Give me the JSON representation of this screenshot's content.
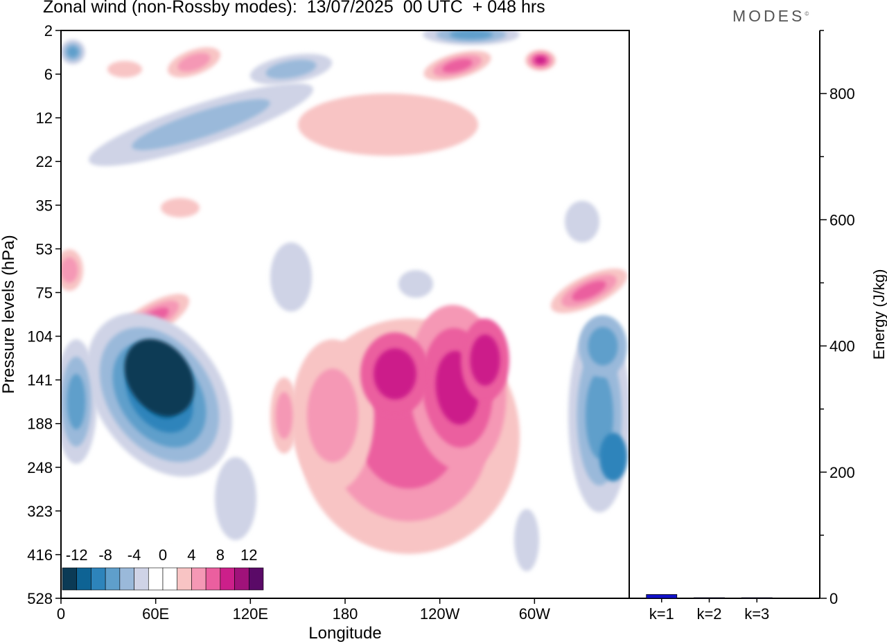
{
  "title": "Zonal wind (non-Rossby modes):  13/07/2025  00 UTC  + 048 hrs",
  "logo": "MODES",
  "logo_mark": "©",
  "chart_data": [
    {
      "type": "heatmap",
      "xlabel": "Longitude",
      "ylabel": "Pressure levels (hPa)",
      "x_ticks": [
        "0",
        "60E",
        "120E",
        "180",
        "120W",
        "60W"
      ],
      "x_tick_degrees": [
        0,
        60,
        120,
        180,
        240,
        300
      ],
      "xlim": [
        0,
        360
      ],
      "y_ticks": [
        "2",
        "6",
        "12",
        "22",
        "35",
        "53",
        "75",
        "104",
        "141",
        "188",
        "248",
        "323",
        "416",
        "528"
      ],
      "colorbar": {
        "labels": [
          "-12",
          "-8",
          "-4",
          "0",
          "4",
          "8",
          "12"
        ],
        "colors": [
          "#0b3a55",
          "#0e6394",
          "#2d84bb",
          "#5f9fcb",
          "#9ab9da",
          "#cfd3e6",
          "#ffffff",
          "#ffffff",
          "#f8c4c4",
          "#f598b5",
          "#eb5f9f",
          "#cc1f8a",
          "#a0127a",
          "#5a0a67"
        ]
      },
      "features": [
        {
          "label": "negative core",
          "lon": 63,
          "pressure_hPa": 160,
          "value": -16
        },
        {
          "label": "positive core",
          "lon": 215,
          "pressure_hPa": 150,
          "value": 10
        },
        {
          "label": "positive core",
          "lon": 245,
          "pressure_hPa": 150,
          "value": 12
        },
        {
          "label": "negative core",
          "lon": 350,
          "pressure_hPa": 220,
          "value": -10
        },
        {
          "label": "positive core",
          "lon": 335,
          "pressure_hPa": 85,
          "value": 8
        },
        {
          "label": "positive core",
          "lon": 65,
          "pressure_hPa": 95,
          "value": 8
        }
      ]
    },
    {
      "type": "bar",
      "ylabel": "Energy (J/kg)",
      "ylim": [
        0,
        900
      ],
      "y_ticks": [
        0,
        200,
        400,
        600,
        800
      ],
      "categories": [
        "k=1",
        "k=2",
        "k=3"
      ],
      "values": [
        6,
        1,
        1
      ],
      "bar_color": "#1010c8"
    }
  ]
}
